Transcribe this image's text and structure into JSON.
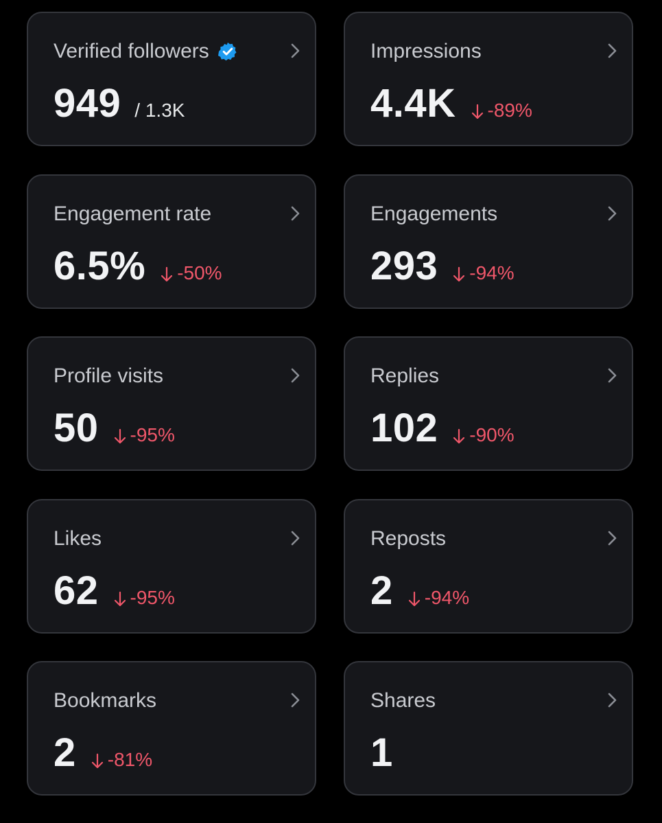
{
  "colors": {
    "background": "#000000",
    "card": "#16171b",
    "card_border": "#34363c",
    "negative": "#f0576a",
    "verified_badge": "#1d9bf0"
  },
  "cards": [
    {
      "title": "Verified followers",
      "value": "949",
      "secondary": "/ 1.3K",
      "icon": "verified-badge-icon"
    },
    {
      "title": "Impressions",
      "value": "4.4K",
      "change": "-89%",
      "direction": "down"
    },
    {
      "title": "Engagement rate",
      "value": "6.5%",
      "change": "-50%",
      "direction": "down"
    },
    {
      "title": "Engagements",
      "value": "293",
      "change": "-94%",
      "direction": "down"
    },
    {
      "title": "Profile visits",
      "value": "50",
      "change": "-95%",
      "direction": "down"
    },
    {
      "title": "Replies",
      "value": "102",
      "change": "-90%",
      "direction": "down"
    },
    {
      "title": "Likes",
      "value": "62",
      "change": "-95%",
      "direction": "down"
    },
    {
      "title": "Reposts",
      "value": "2",
      "change": "-94%",
      "direction": "down"
    },
    {
      "title": "Bookmarks",
      "value": "2",
      "change": "-81%",
      "direction": "down"
    },
    {
      "title": "Shares",
      "value": "1"
    }
  ]
}
